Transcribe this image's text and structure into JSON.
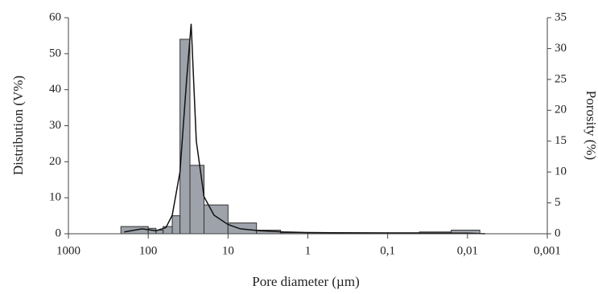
{
  "chart_data": {
    "type": "histogram",
    "xlabel": "Pore diameter (µm)",
    "ylabel": "Distribution (V%)",
    "y2label": "Porosity (%)",
    "bins": [
      220,
      100,
      80,
      65,
      50,
      40,
      30,
      20,
      10,
      4.4,
      2.2,
      1,
      0.1,
      0.04,
      0.016,
      0.007
    ],
    "values": [
      2,
      1.5,
      1,
      2,
      5,
      54,
      19,
      8,
      3,
      1,
      0.3,
      0.3,
      0.3,
      0.5,
      1
    ],
    "color": "#9ea2aa",
    "overlay": {
      "type": "line",
      "axis": "y2",
      "color": "#111",
      "x": [
        200,
        120,
        80,
        60,
        50,
        40,
        33,
        29,
        25,
        20,
        15,
        10,
        7,
        4,
        2,
        1,
        0.1,
        0.01,
        0.006
      ],
      "values": [
        0.3,
        0.8,
        0.5,
        1,
        3,
        10,
        25,
        34,
        15,
        6,
        3,
        1.5,
        0.8,
        0.5,
        0.3,
        0.2,
        0.1,
        0.1,
        0
      ]
    },
    "xscale": "log",
    "xlim": [
      1000,
      0.001
    ],
    "xticks": [
      1000,
      100,
      10,
      1,
      {
        "value": 0.1,
        "label": "0,1"
      },
      {
        "value": 0.01,
        "label": "0,01"
      },
      {
        "value": 0.001,
        "label": "0,001"
      }
    ],
    "ylim": [
      0,
      60
    ],
    "yticks": [
      0,
      10,
      20,
      30,
      40,
      50,
      60
    ],
    "y2lim": [
      0,
      35
    ],
    "y2ticks": [
      0,
      5,
      10,
      15,
      20,
      25,
      30,
      35
    ]
  }
}
